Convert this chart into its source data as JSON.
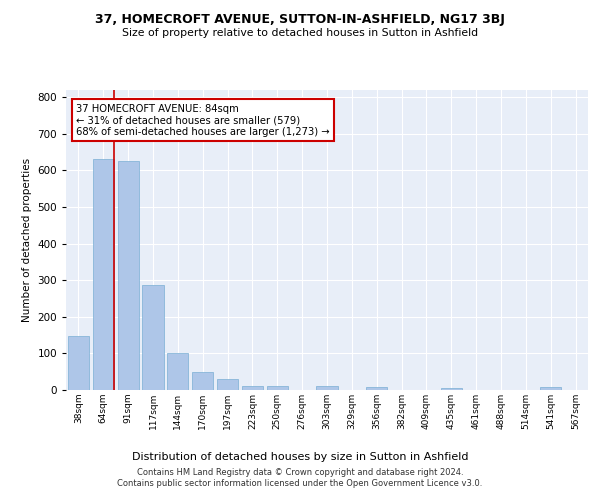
{
  "title1": "37, HOMECROFT AVENUE, SUTTON-IN-ASHFIELD, NG17 3BJ",
  "title2": "Size of property relative to detached houses in Sutton in Ashfield",
  "xlabel": "Distribution of detached houses by size in Sutton in Ashfield",
  "ylabel": "Number of detached properties",
  "categories": [
    "38sqm",
    "64sqm",
    "91sqm",
    "117sqm",
    "144sqm",
    "170sqm",
    "197sqm",
    "223sqm",
    "250sqm",
    "276sqm",
    "303sqm",
    "329sqm",
    "356sqm",
    "382sqm",
    "409sqm",
    "435sqm",
    "461sqm",
    "488sqm",
    "514sqm",
    "541sqm",
    "567sqm"
  ],
  "values": [
    148,
    632,
    625,
    287,
    101,
    48,
    30,
    12,
    12,
    0,
    12,
    0,
    8,
    0,
    0,
    5,
    0,
    0,
    0,
    8,
    0
  ],
  "bar_color": "#aec6e8",
  "bar_edge_color": "#7aafd4",
  "background_color": "#e8eef8",
  "vline_x_index": 1,
  "bar_width": 0.85,
  "vline_color": "#cc0000",
  "annotation_text": "37 HOMECROFT AVENUE: 84sqm\n← 31% of detached houses are smaller (579)\n68% of semi-detached houses are larger (1,273) →",
  "annotation_box_color": "#ffffff",
  "annotation_box_edge": "#cc0000",
  "ylim": [
    0,
    820
  ],
  "yticks": [
    0,
    100,
    200,
    300,
    400,
    500,
    600,
    700,
    800
  ],
  "footer1": "Contains HM Land Registry data © Crown copyright and database right 2024.",
  "footer2": "Contains public sector information licensed under the Open Government Licence v3.0."
}
